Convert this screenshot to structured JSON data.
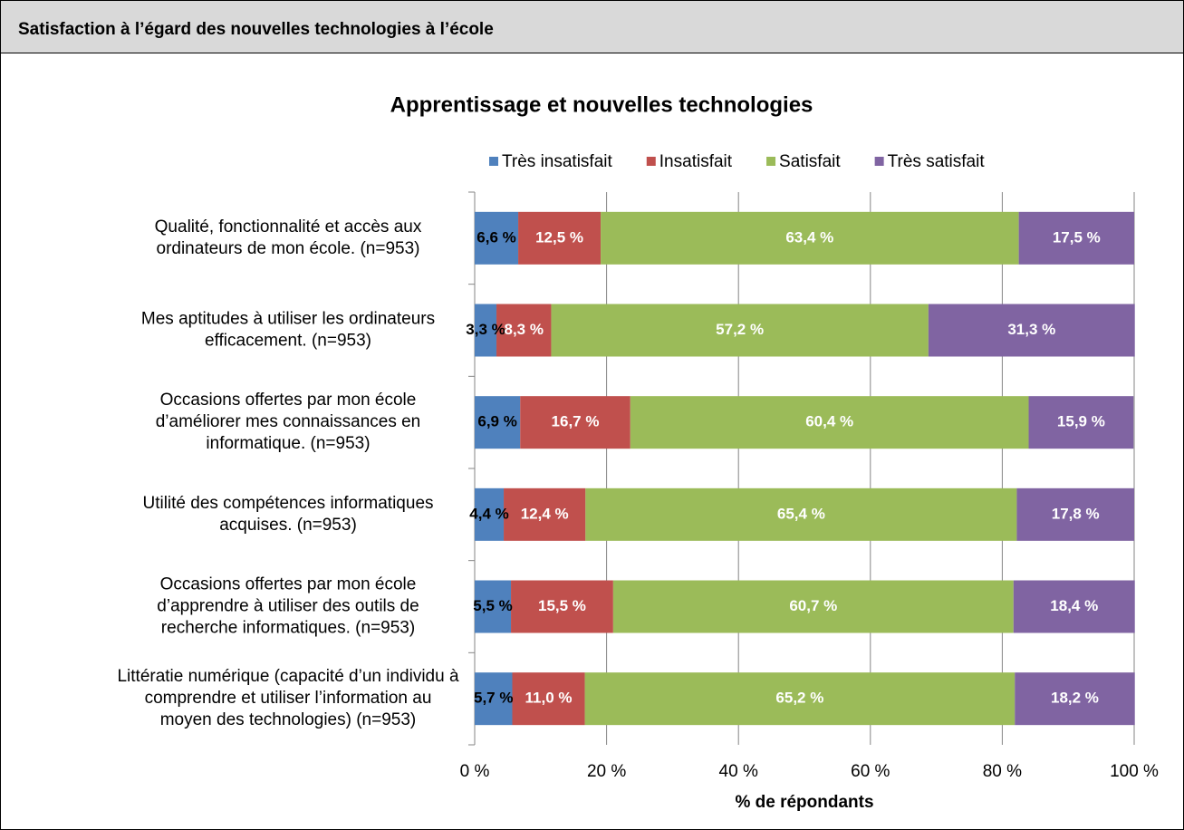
{
  "header": {
    "title": "Satisfaction à l’égard des nouvelles technologies à l’école"
  },
  "chart_data": {
    "type": "stacked_barh",
    "title": "Apprentissage et nouvelles technologies",
    "x_label": "% de répondants",
    "categories": [
      [
        "Qualité, fonctionnalité et accès aux",
        "ordinateurs de mon école. (n=953)"
      ],
      [
        "Mes aptitudes à utiliser les ordinateurs",
        "efficacement. (n=953)"
      ],
      [
        "Occasions offertes par mon école",
        "d’améliorer mes connaissances en",
        "informatique. (n=953)"
      ],
      [
        "Utilité des compétences informatiques",
        "acquises. (n=953)"
      ],
      [
        "Occasions offertes par mon école",
        "d’apprendre à utiliser des outils de",
        "recherche informatiques. (n=953)"
      ],
      [
        "Littératie numérique (capacité d’un individu à",
        "comprendre et utiliser l’information au",
        "moyen des technologies) (n=953)"
      ]
    ],
    "series": [
      {
        "name": "Très insatisfait",
        "color": "#4f81bd",
        "label_color": "#000000",
        "values": [
          6.6,
          3.3,
          6.9,
          4.4,
          5.5,
          5.7
        ],
        "value_labels": [
          "6,6 %",
          "3,3 %",
          "6,9 %",
          "4,4 %",
          "5,5 %",
          "5,7 %"
        ]
      },
      {
        "name": "Insatisfait",
        "color": "#c0504d",
        "label_color": "#ffffff",
        "values": [
          12.5,
          8.3,
          16.7,
          12.4,
          15.5,
          11.0
        ],
        "value_labels": [
          "12,5 %",
          "8,3 %",
          "16,7 %",
          "12,4 %",
          "15,5 %",
          "11,0 %"
        ]
      },
      {
        "name": "Satisfait",
        "color": "#9bbb59",
        "label_color": "#ffffff",
        "values": [
          63.4,
          57.2,
          60.4,
          65.4,
          60.7,
          65.2
        ],
        "value_labels": [
          "63,4 %",
          "57,2 %",
          "60,4 %",
          "65,4 %",
          "60,7 %",
          "65,2 %"
        ]
      },
      {
        "name": "Très satisfait",
        "color": "#8064a2",
        "label_color": "#ffffff",
        "values": [
          17.5,
          31.3,
          15.9,
          17.8,
          18.4,
          18.2
        ],
        "value_labels": [
          "17,5 %",
          "31,3 %",
          "15,9 %",
          "17,8 %",
          "18,4 %",
          "18,2 %"
        ]
      }
    ],
    "xlim": [
      0,
      100
    ],
    "xticks": [
      {
        "value": 0,
        "label": "0 %"
      },
      {
        "value": 20,
        "label": "20 %"
      },
      {
        "value": 40,
        "label": "40 %"
      },
      {
        "value": 60,
        "label": "60 %"
      },
      {
        "value": 80,
        "label": "80 %"
      },
      {
        "value": 100,
        "label": "100 %"
      }
    ],
    "grid": true,
    "legend": "top"
  }
}
